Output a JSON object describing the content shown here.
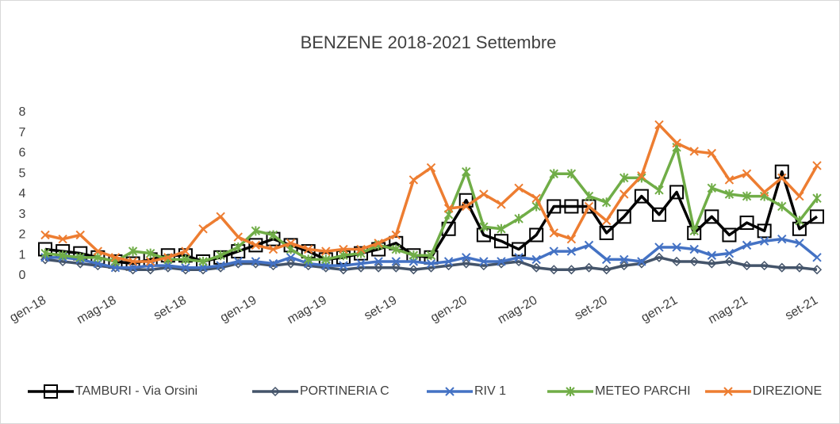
{
  "chart_data": {
    "type": "line",
    "title": "BENZENE 2018-2021 Settembre",
    "categories": [
      "gen-18",
      null,
      null,
      null,
      "mag-18",
      null,
      null,
      null,
      "set-18",
      null,
      null,
      null,
      "gen-19",
      null,
      null,
      null,
      "mag-19",
      null,
      null,
      null,
      "set-19",
      null,
      null,
      null,
      "gen-20",
      null,
      null,
      null,
      "mag-20",
      null,
      null,
      null,
      "set-20",
      null,
      null,
      null,
      "gen-21",
      null,
      null,
      null,
      "mag-21",
      null,
      null,
      null,
      "set-21"
    ],
    "ylim": [
      0,
      8
    ],
    "yticks": [
      0,
      1,
      2,
      3,
      4,
      5,
      6,
      7,
      8
    ],
    "grid": false,
    "legend": "bottom",
    "series": [
      {
        "name": "TAMBURI - Via Orsini",
        "color": "#000000",
        "marker": "square",
        "values": [
          1.3,
          1.2,
          1.1,
          0.9,
          0.7,
          0.6,
          0.8,
          1.0,
          1.0,
          0.7,
          0.9,
          1.2,
          1.5,
          1.8,
          1.5,
          1.2,
          0.8,
          0.9,
          1.1,
          1.3,
          1.6,
          1.0,
          0.9,
          2.3,
          3.7,
          2.0,
          1.7,
          1.3,
          2.0,
          3.4,
          3.4,
          3.4,
          2.1,
          2.9,
          3.9,
          3.0,
          4.1,
          2.1,
          2.9,
          2.0,
          2.6,
          2.2,
          5.1,
          2.3,
          2.9
        ]
      },
      {
        "name": "PORTINERIA C",
        "color": "#44546a",
        "marker": "diamond",
        "values": [
          0.8,
          0.7,
          0.6,
          0.5,
          0.4,
          0.3,
          0.3,
          0.4,
          0.3,
          0.3,
          0.4,
          0.6,
          0.6,
          0.5,
          0.6,
          0.5,
          0.4,
          0.3,
          0.4,
          0.4,
          0.4,
          0.3,
          0.4,
          0.5,
          0.6,
          0.5,
          0.6,
          0.7,
          0.4,
          0.3,
          0.3,
          0.4,
          0.3,
          0.5,
          0.6,
          0.9,
          0.7,
          0.7,
          0.6,
          0.7,
          0.5,
          0.5,
          0.4,
          0.4,
          0.3
        ]
      },
      {
        "name": "RIV 1",
        "color": "#4472c4",
        "marker": "x",
        "values": [
          0.9,
          0.9,
          0.8,
          0.6,
          0.4,
          0.4,
          0.5,
          0.5,
          0.4,
          0.4,
          0.5,
          0.7,
          0.7,
          0.6,
          0.9,
          0.6,
          0.5,
          0.5,
          0.6,
          0.7,
          0.7,
          0.7,
          0.6,
          0.7,
          0.9,
          0.7,
          0.7,
          0.9,
          0.8,
          1.2,
          1.2,
          1.5,
          0.8,
          0.8,
          0.7,
          1.4,
          1.4,
          1.3,
          1.0,
          1.1,
          1.5,
          1.7,
          1.8,
          1.6,
          0.9
        ]
      },
      {
        "name": "METEO PARCHI",
        "color": "#70ad47",
        "marker": "star",
        "values": [
          1.1,
          1.0,
          0.9,
          0.9,
          0.7,
          1.2,
          1.1,
          0.8,
          0.8,
          0.7,
          1.0,
          1.4,
          2.2,
          2.0,
          1.3,
          0.8,
          0.8,
          1.0,
          1.1,
          1.5,
          1.3,
          1.0,
          1.0,
          3.0,
          5.1,
          2.4,
          2.3,
          2.8,
          3.4,
          5.0,
          5.0,
          3.9,
          3.6,
          4.8,
          4.8,
          4.2,
          6.3,
          2.2,
          4.3,
          4.0,
          3.9,
          3.9,
          3.4,
          2.7,
          3.8
        ]
      },
      {
        "name": "DIREZIONE",
        "color": "#ed7d31",
        "marker": "x",
        "values": [
          2.0,
          1.8,
          2.0,
          1.2,
          0.9,
          0.7,
          0.7,
          0.9,
          1.2,
          2.3,
          2.9,
          1.9,
          1.5,
          1.3,
          1.6,
          1.3,
          1.2,
          1.3,
          1.3,
          1.6,
          2.0,
          4.7,
          5.3,
          3.3,
          3.4,
          4.0,
          3.5,
          4.3,
          3.8,
          2.1,
          1.8,
          3.4,
          2.7,
          4.0,
          4.9,
          7.4,
          6.5,
          6.1,
          6.0,
          4.7,
          5.0,
          4.1,
          4.8,
          3.9,
          5.4
        ]
      }
    ]
  }
}
